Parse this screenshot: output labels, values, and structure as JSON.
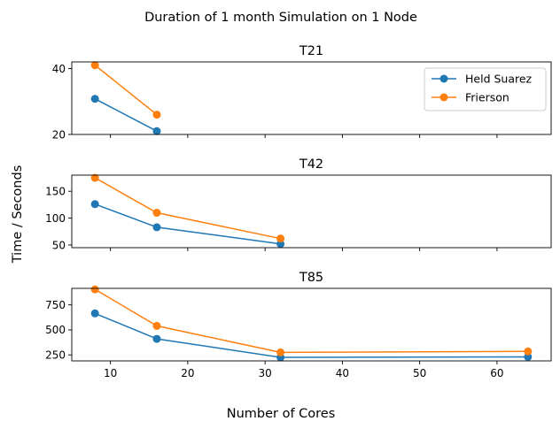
{
  "figure": {
    "suptitle": "Duration of 1 month Simulation on 1 Node",
    "xlabel": "Number of Cores",
    "ylabel": "Time / Seconds"
  },
  "legend": {
    "placement": "upper-right of first subplot",
    "entries": [
      "Held Suarez",
      "Frierson"
    ]
  },
  "colors": {
    "held_suarez": "#1f77b4",
    "frierson": "#ff7f0e"
  },
  "chart_data": [
    {
      "type": "line",
      "title": "T21",
      "xlim": [
        5,
        67
      ],
      "ylim": [
        20,
        42
      ],
      "xticks": [
        10,
        20,
        30,
        40,
        50,
        60
      ],
      "yticks": [
        20,
        40
      ],
      "show_x_tick_labels": false,
      "series": [
        {
          "name": "Held Suarez",
          "x": [
            8,
            16
          ],
          "y": [
            30.8,
            21.0
          ]
        },
        {
          "name": "Frierson",
          "x": [
            8,
            16
          ],
          "y": [
            41.0,
            26.0
          ]
        }
      ]
    },
    {
      "type": "line",
      "title": "T42",
      "xlim": [
        5,
        67
      ],
      "ylim": [
        45,
        180
      ],
      "xticks": [
        10,
        20,
        30,
        40,
        50,
        60
      ],
      "yticks": [
        50,
        100,
        150
      ],
      "show_x_tick_labels": false,
      "series": [
        {
          "name": "Held Suarez",
          "x": [
            8,
            16,
            32
          ],
          "y": [
            126,
            83,
            52
          ]
        },
        {
          "name": "Frierson",
          "x": [
            8,
            16,
            32
          ],
          "y": [
            175,
            110,
            62
          ]
        }
      ]
    },
    {
      "type": "line",
      "title": "T85",
      "xlim": [
        5,
        67
      ],
      "ylim": [
        190,
        915
      ],
      "xticks": [
        10,
        20,
        30,
        40,
        50,
        60
      ],
      "yticks": [
        250,
        500,
        750
      ],
      "show_x_tick_labels": true,
      "series": [
        {
          "name": "Held Suarez",
          "x": [
            8,
            16,
            32,
            64
          ],
          "y": [
            665,
            410,
            225,
            230
          ]
        },
        {
          "name": "Frierson",
          "x": [
            8,
            16,
            32,
            64
          ],
          "y": [
            905,
            540,
            275,
            285
          ]
        }
      ]
    }
  ]
}
